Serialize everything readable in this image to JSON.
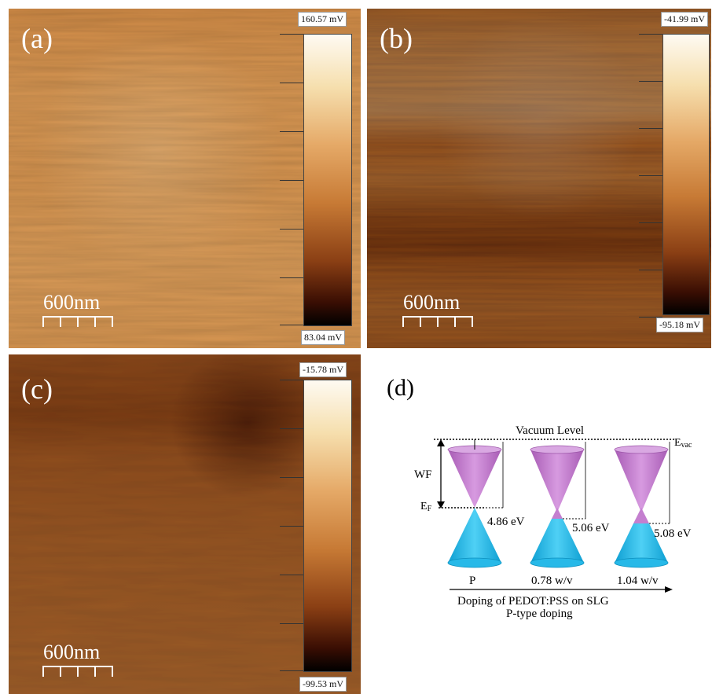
{
  "panels": [
    {
      "letter": "(a)",
      "scale_label": "600nm",
      "colorbar": {
        "max": "160.57 mV",
        "min": "83.04 mV"
      }
    },
    {
      "letter": "(b)",
      "scale_label": "600nm",
      "colorbar": {
        "max": "-41.99 mV",
        "min": "-95.18 mV"
      }
    },
    {
      "letter": "(c)",
      "scale_label": "600nm",
      "colorbar": {
        "max": "-15.78 mV",
        "min": "-99.53 mV"
      }
    }
  ],
  "diagram": {
    "letter": "(d)",
    "vacuum_level": "Vacuum Level",
    "evac_main": "E",
    "evac_sub": "vac",
    "wf": "WF",
    "ef_main": "E",
    "ef_sub": "F",
    "samples": [
      {
        "work_function": "4.86 eV",
        "label": "P"
      },
      {
        "work_function": "5.06 eV",
        "label": "0.78 w/v"
      },
      {
        "work_function": "5.08 eV",
        "label": "1.04 w/v"
      }
    ],
    "caption_line1": "Doping of  PEDOT:PSS on SLG",
    "caption_line2": "P-type doping",
    "colors": {
      "upper_cone": "#c47fcf",
      "lower_cone": "#1fb4e3"
    }
  }
}
